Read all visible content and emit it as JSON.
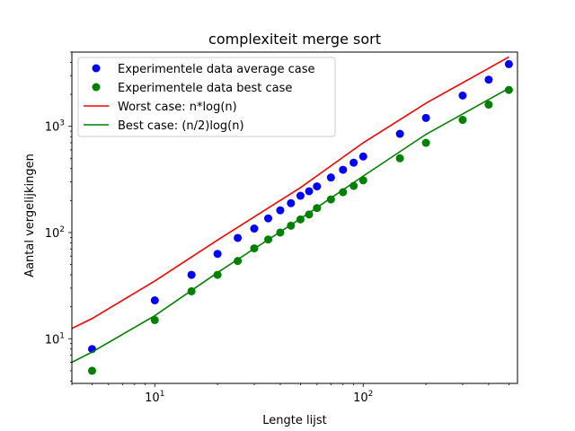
{
  "chart_data": {
    "type": "scatter",
    "title": "complexiteit merge sort",
    "xlabel": "Lengte lijst",
    "ylabel": "Aantal vergelijkingen",
    "xscale": "log",
    "yscale": "log",
    "xlim": [
      4,
      550
    ],
    "ylim": [
      3.8,
      5000
    ],
    "legend": "top-left",
    "grid": false,
    "x_major_ticks": [
      {
        "value": 10,
        "base": "10",
        "exp": "1"
      },
      {
        "value": 100,
        "base": "10",
        "exp": "2"
      }
    ],
    "y_major_ticks": [
      {
        "value": 10,
        "base": "10",
        "exp": "1"
      },
      {
        "value": 100,
        "base": "10",
        "exp": "2"
      },
      {
        "value": 1000,
        "base": "10",
        "exp": "3"
      }
    ],
    "series": [
      {
        "name": "Experimentele data average case",
        "kind": "scatter",
        "color": "#0000ff",
        "x": [
          5,
          10,
          15,
          20,
          25,
          30,
          35,
          40,
          45,
          50,
          55,
          60,
          70,
          80,
          90,
          100,
          150,
          200,
          300,
          400,
          500
        ],
        "y": [
          8,
          23,
          40,
          63,
          89,
          109,
          136,
          162,
          189,
          222,
          245,
          272,
          330,
          390,
          455,
          520,
          850,
          1200,
          1950,
          2750,
          3850
        ]
      },
      {
        "name": "Experimentele data best case",
        "kind": "scatter",
        "color": "#008000",
        "x": [
          5,
          10,
          15,
          20,
          25,
          30,
          35,
          40,
          45,
          50,
          55,
          60,
          70,
          80,
          90,
          100,
          150,
          200,
          300,
          400,
          500
        ],
        "y": [
          5,
          15,
          28,
          40,
          54,
          71,
          86,
          100,
          116,
          133,
          148,
          170,
          205,
          240,
          275,
          310,
          500,
          700,
          1150,
          1600,
          2200
        ]
      },
      {
        "name": "Worst case: n*log(n)",
        "kind": "line",
        "color": "#ff0000",
        "x": [
          4,
          5,
          10,
          20,
          50,
          100,
          200,
          500
        ],
        "y": [
          12.5,
          15.5,
          35,
          85,
          265,
          700,
          1650,
          4500
        ]
      },
      {
        "name": "Best case: (n/2)log(n)",
        "kind": "line",
        "color": "#008000",
        "x": [
          4,
          5,
          10,
          20,
          50,
          100,
          200,
          500
        ],
        "y": [
          6,
          7.5,
          16.5,
          42,
          135,
          340,
          840,
          2280
        ]
      }
    ]
  }
}
